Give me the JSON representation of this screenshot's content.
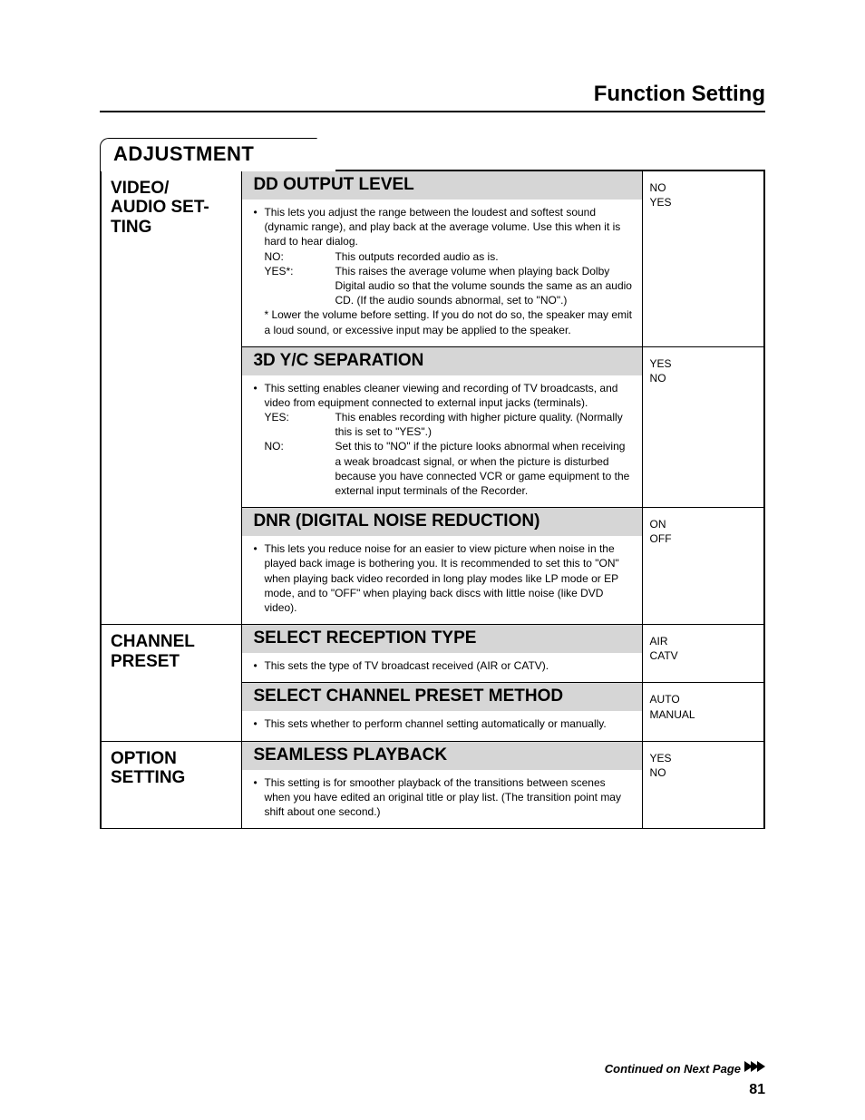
{
  "page_title": "Function Setting",
  "tab_label": "ADJUSTMENT",
  "continued": "Continued on Next Page",
  "page_number": "81",
  "categories": [
    {
      "title": "VIDEO/\nAUDIO SET-\nTING",
      "sections": [
        {
          "heading": "DD OUTPUT LEVEL",
          "options": [
            "NO",
            "YES"
          ],
          "bullets": [
            "This lets you adjust the range between the loudest and softest sound (dynamic range), and play back at the average volume. Use this when it is hard to hear dialog."
          ],
          "kv": [
            {
              "k": "NO:",
              "v": "This outputs recorded audio as is."
            },
            {
              "k": "YES*:",
              "v": "This raises the average volume when playing back Dolby Digital audio so that the volume sounds the same as an audio CD. (If the audio sounds abnormal, set to \"NO\".)"
            }
          ],
          "note": "* Lower the volume before setting. If you do not do so, the speaker may emit a loud sound, or excessive input may be applied to the speaker."
        },
        {
          "heading": "3D Y/C SEPARATION",
          "options": [
            "YES",
            "NO"
          ],
          "bullets": [
            "This setting enables cleaner viewing and recording of TV broadcasts, and video from equipment connected to external input jacks (terminals)."
          ],
          "kv": [
            {
              "k": "YES:",
              "v": "This enables recording with higher picture quality. (Normally this is set to \"YES\".)"
            },
            {
              "k": "NO:",
              "v": "Set this to \"NO\" if the picture looks abnormal when receiving a weak broadcast signal, or when the picture is disturbed because you have connected VCR or game equipment to the external input terminals of the Recorder."
            }
          ]
        },
        {
          "heading": "DNR (DIGITAL NOISE REDUCTION)",
          "options": [
            "ON",
            "OFF"
          ],
          "bullets": [
            "This lets you reduce noise for an easier to view picture when noise in the played back image is bothering you. It is recommended to set this to \"ON\" when playing back video recorded in long play modes like LP mode or EP mode, and to \"OFF\" when playing back discs with little noise (like DVD video)."
          ]
        }
      ]
    },
    {
      "title": "CHANNEL\nPRESET",
      "sections": [
        {
          "heading": "SELECT RECEPTION TYPE",
          "options": [
            "AIR",
            "CATV"
          ],
          "bullets": [
            "This sets the type of TV broadcast received (AIR or CATV)."
          ]
        },
        {
          "heading": "SELECT CHANNEL PRESET METHOD",
          "options": [
            "AUTO",
            "MANUAL"
          ],
          "bullets": [
            "This sets whether to perform channel setting automatically or manually."
          ]
        }
      ]
    },
    {
      "title": "OPTION\nSETTING",
      "sections": [
        {
          "heading": "SEAMLESS PLAYBACK",
          "options": [
            "YES",
            "NO"
          ],
          "bullets": [
            "This setting is for smoother playback of the transitions between scenes when you have edited an original title or play list. (The transition point may shift about one second.)"
          ]
        }
      ]
    }
  ]
}
